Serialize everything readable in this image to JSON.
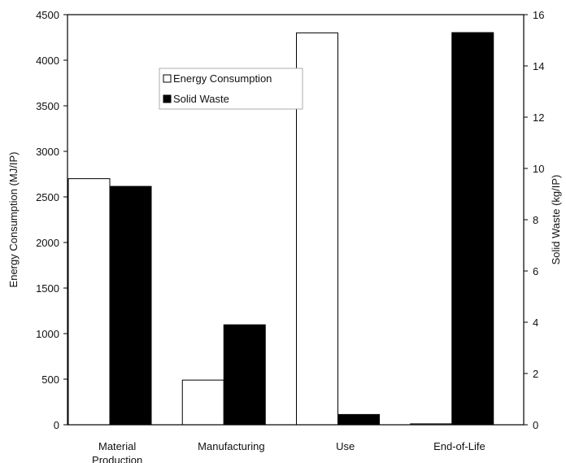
{
  "chart_data": {
    "type": "bar",
    "categories": [
      "Material Production",
      "Manufacturing",
      "Use",
      "End-of-Life"
    ],
    "category_lines": [
      [
        "Material",
        "Production"
      ],
      [
        "Manufacturing"
      ],
      [
        "Use"
      ],
      [
        "End-of-Life"
      ]
    ],
    "series": [
      {
        "name": "Energy Consumption",
        "axis": "left",
        "values": [
          2700,
          490,
          4300,
          10
        ],
        "color": "#ffffff"
      },
      {
        "name": "Solid Waste",
        "axis": "right",
        "values": [
          9.3,
          3.9,
          0.4,
          15.3
        ],
        "color": "#000000"
      }
    ],
    "ylabel": "Energy Consumption (MJ/IP)",
    "y2label": "Solid Waste (kg/IP)",
    "ylim": [
      0,
      4500
    ],
    "y2lim": [
      0,
      16
    ],
    "yticks": [
      "0",
      "500",
      "1000",
      "1500",
      "2000",
      "2500",
      "3000",
      "3500",
      "4000",
      "4500"
    ],
    "y2ticks": [
      "0",
      "2",
      "4",
      "6",
      "8",
      "10",
      "12",
      "14",
      "16"
    ],
    "legend_position": "top-left inside plot",
    "grid": false
  }
}
